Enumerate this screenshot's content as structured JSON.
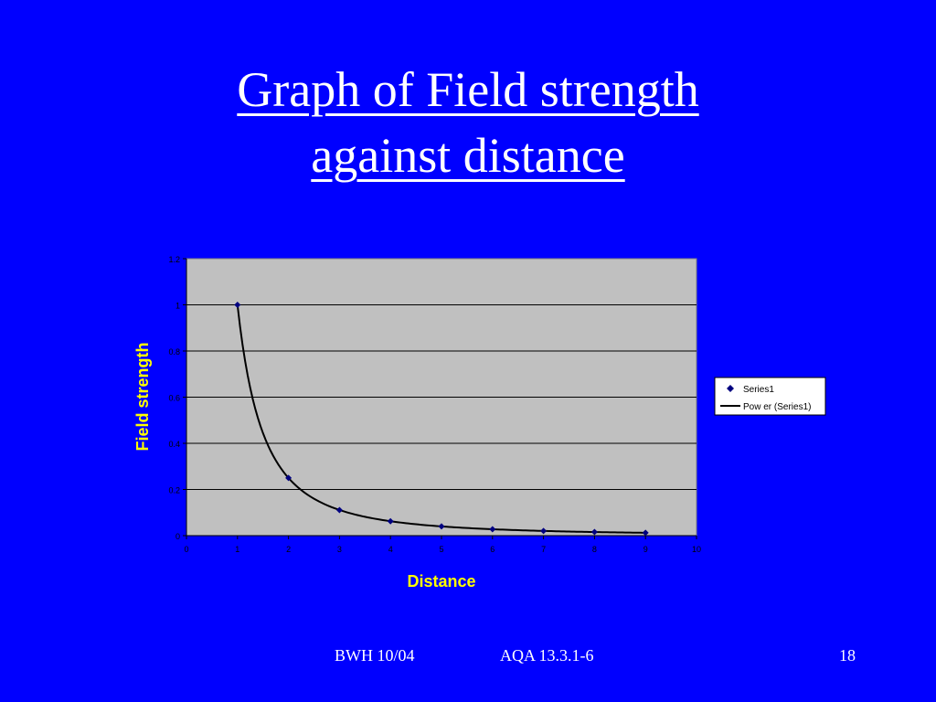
{
  "slide": {
    "title_line1": "Graph of Field strength",
    "title_line2": "against distance"
  },
  "footer": {
    "left": "BWH 10/04",
    "center": "AQA 13.3.1-6",
    "page_number": "18"
  },
  "colors": {
    "background": "#0000ff",
    "plot_area": "#c0c0c0",
    "axis_title": "#ffff00",
    "marker": "#000080",
    "trendline": "#000000",
    "text": "#ffffff"
  },
  "chart_data": {
    "type": "scatter",
    "title": "",
    "xlabel": "Distance",
    "ylabel": "Field strength",
    "xlim": [
      0,
      10
    ],
    "ylim": [
      0,
      1.2
    ],
    "xticks": [
      0,
      1,
      2,
      3,
      4,
      5,
      6,
      7,
      8,
      9,
      10
    ],
    "yticks": [
      0,
      0.2,
      0.4,
      0.6,
      0.8,
      1,
      1.2
    ],
    "grid": "horizontal",
    "legend_position": "right",
    "series": [
      {
        "name": "Series1",
        "marker": "diamond",
        "x": [
          1,
          2,
          3,
          4,
          5,
          6,
          7,
          8,
          9
        ],
        "y": [
          1,
          0.25,
          0.111,
          0.0625,
          0.04,
          0.0278,
          0.0204,
          0.0156,
          0.0123
        ]
      }
    ],
    "trendline": {
      "name": "Pow er (Series1)",
      "type": "power",
      "coefficient": 1,
      "exponent": -2
    }
  }
}
